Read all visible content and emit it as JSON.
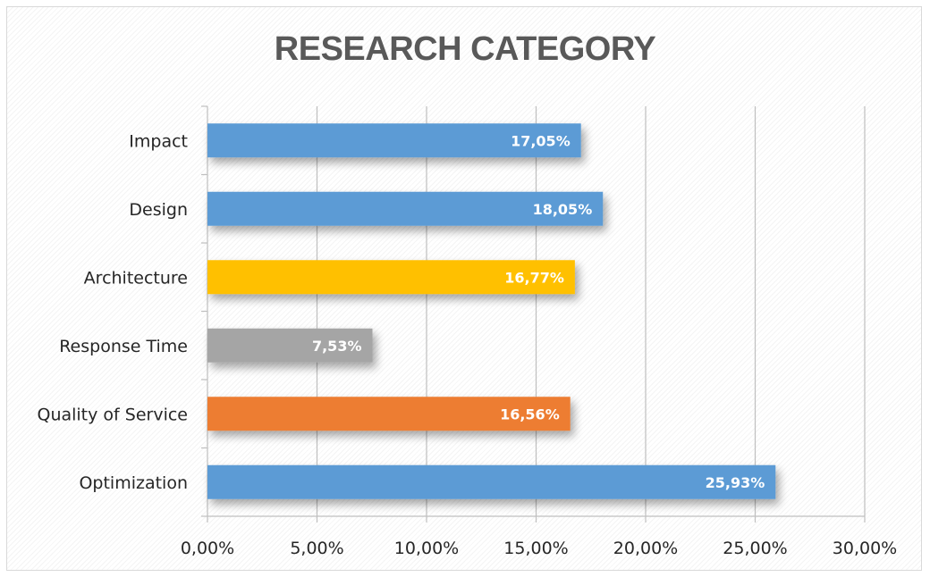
{
  "chart_data": {
    "type": "bar",
    "orientation": "horizontal",
    "title": "RESEARCH CATEGORY",
    "categories": [
      "Impact",
      "Design",
      "Architecture",
      "Response Time",
      "Quality of Service",
      "Optimization"
    ],
    "values": [
      17.05,
      18.05,
      16.77,
      7.53,
      16.56,
      25.93
    ],
    "value_labels": [
      "17,05%",
      "18,05%",
      "16,77%",
      "7,53%",
      "16,56%",
      "25,93%"
    ],
    "bar_colors": [
      "#5b9bd5",
      "#5b9bd5",
      "#ffc000",
      "#a5a5a5",
      "#ed7d31",
      "#5b9bd5"
    ],
    "xlim": [
      0,
      30
    ],
    "x_ticks": [
      0,
      5,
      10,
      15,
      20,
      25,
      30
    ],
    "x_tick_labels": [
      "0,00%",
      "5,00%",
      "10,00%",
      "15,00%",
      "20,00%",
      "25,00%",
      "30,00%"
    ],
    "xlabel": "",
    "ylabel": "",
    "grid": true,
    "legend": false
  }
}
